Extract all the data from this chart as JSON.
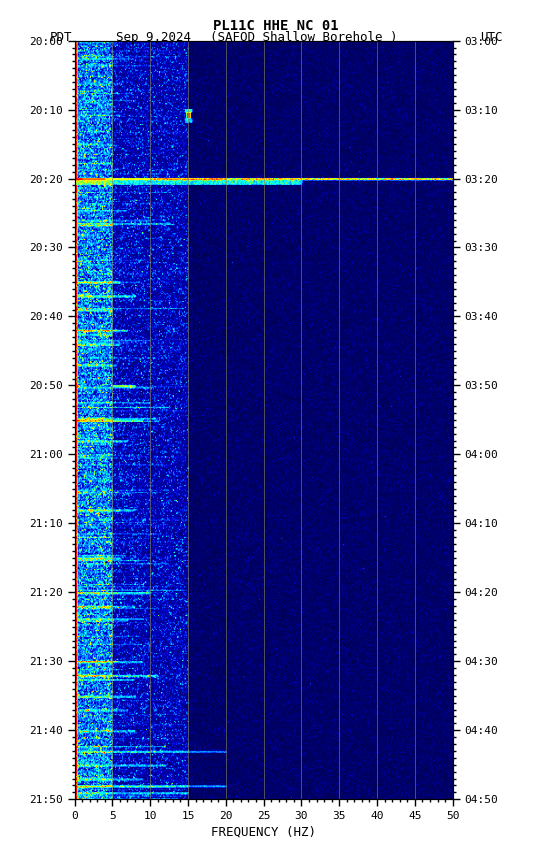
{
  "title_line1": "PL11C HHE NC 01",
  "xlabel": "FREQUENCY (HZ)",
  "freq_min": 0,
  "freq_max": 50,
  "time_ticks_left": [
    "20:00",
    "20:10",
    "20:20",
    "20:30",
    "20:40",
    "20:50",
    "21:00",
    "21:10",
    "21:20",
    "21:30",
    "21:40",
    "21:50"
  ],
  "time_ticks_right": [
    "03:00",
    "03:10",
    "03:20",
    "03:30",
    "03:40",
    "03:50",
    "04:00",
    "04:10",
    "04:20",
    "04:30",
    "04:40",
    "04:50"
  ],
  "freq_ticks": [
    0,
    5,
    10,
    15,
    20,
    25,
    30,
    35,
    40,
    45,
    50
  ],
  "vertical_grid_lines": [
    5,
    10,
    15,
    20,
    25,
    30,
    35,
    40,
    45
  ],
  "background_color": "#ffffff",
  "fig_width": 5.52,
  "fig_height": 8.64,
  "n_time": 660,
  "n_freq": 500,
  "noise_seed": 42,
  "pdt_label": "PDT",
  "date_label": "Sep 9,2024",
  "station_label": "(SAFOD Shallow Borehole )",
  "utc_label": "UTC"
}
